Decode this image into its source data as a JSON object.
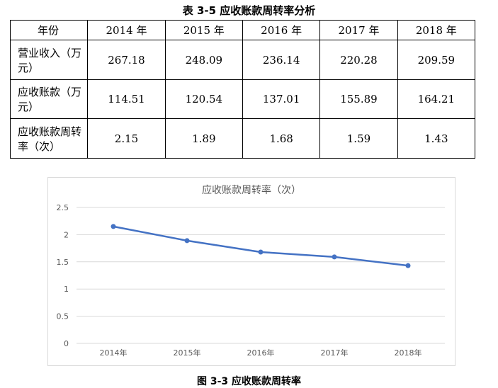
{
  "table": {
    "caption": "表 3-5 应收账款周转率分析",
    "header": [
      "年份",
      "2014 年",
      "2015 年",
      "2016 年",
      "2017 年",
      "2018 年"
    ],
    "rows": [
      {
        "label": "营业收入（万元）",
        "values": [
          "267.18",
          "248.09",
          "236.14",
          "220.28",
          "209.59"
        ]
      },
      {
        "label": "应收账款（万元）",
        "values": [
          "114.51",
          "120.54",
          "137.01",
          "155.89",
          "164.21"
        ]
      },
      {
        "label": "应收账款周转率（次）",
        "values": [
          "2.15",
          "1.89",
          "1.68",
          "1.59",
          "1.43"
        ]
      }
    ]
  },
  "chart_data": {
    "type": "line",
    "title": "应收账款周转率（次）",
    "categories": [
      "2014年",
      "2015年",
      "2016年",
      "2017年",
      "2018年"
    ],
    "series": [
      {
        "values": [
          2.15,
          1.89,
          1.68,
          1.59,
          1.43
        ],
        "color": "#4472c4"
      }
    ],
    "ylim": [
      0,
      2.5
    ],
    "yticks": [
      "0",
      "0.5",
      "1",
      "1.5",
      "2",
      "2.5"
    ],
    "grid": true,
    "legend": "none",
    "xlabel": "",
    "ylabel": ""
  },
  "figure_caption": "图 3-3 应收账款周转率"
}
